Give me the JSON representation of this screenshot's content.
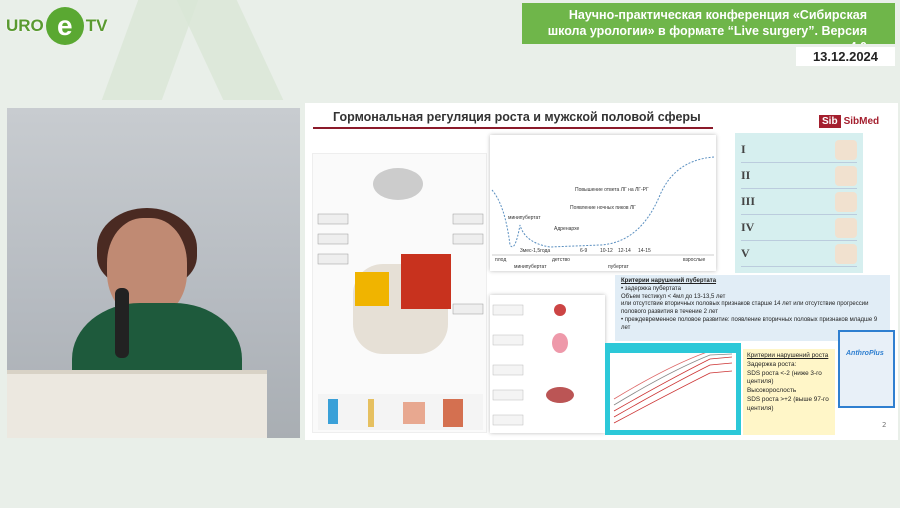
{
  "logo": {
    "left": "URO",
    "middle": "e",
    "right": "TV"
  },
  "banner": {
    "title": "Научно-практическая конференция «Сибирская школа урологии» в формате “Live surgery”. Версия 4.0",
    "date": "13.12.2024"
  },
  "slide": {
    "title": "Гормональная регуляция роста и мужской половой сферы",
    "brand": "SibMed",
    "page": "2",
    "curve_labels": [
      "минипубертат",
      "3мес-1,5года",
      "Адренархе",
      "Появление ночных пиков ЛГ",
      "Повышение ответа ЛГ на ЛГ-РГ",
      "плод",
      "детство",
      "6-9",
      "10-12",
      "12-14",
      "14-15",
      "взрослые",
      "минипубертат",
      "пубертат"
    ],
    "tanner": [
      "I",
      "II",
      "III",
      "IV",
      "V"
    ],
    "puberty_criteria": {
      "heading": "Критерии нарушений пубертата",
      "lines": [
        "•  задержка пубертата",
        "Объем тестикул < 4мл до 13-13,5 лет",
        "или отсутствие вторичных половых признаков старше 14 лет или отсутствие прогрессии полового развития в течение 2 лет",
        "•  преждевременное половое развитие: появление вторичных половых признаков младше 9 лет"
      ]
    },
    "growth_criteria": {
      "heading": "Критерии нарушений роста",
      "lines": [
        "Задержка роста:",
        "SDS роста <-2 (ниже 3-го центиля)",
        "Высокорослость",
        "SDS роста >+2 (выше 97-го центиля)"
      ]
    },
    "software": "AnthroPlus"
  }
}
